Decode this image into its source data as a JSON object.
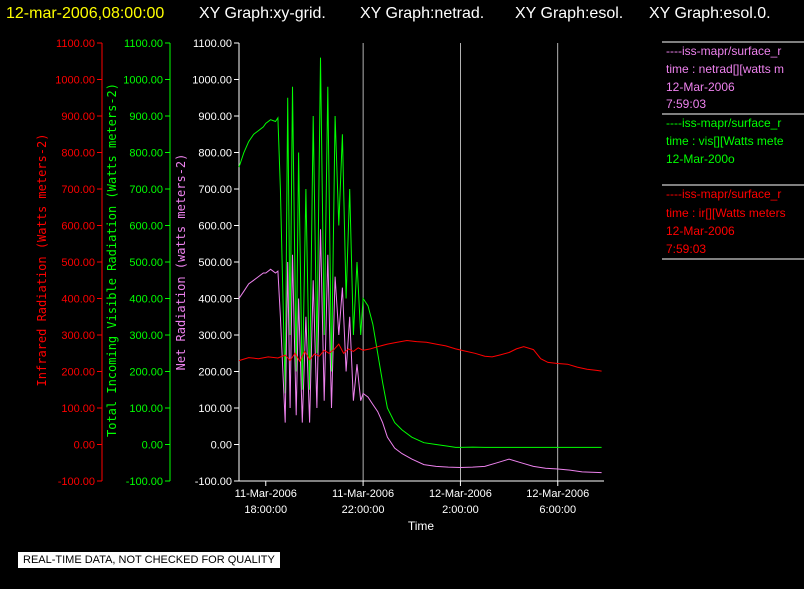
{
  "header": {
    "timestamp": "12-mar-2006,08:00:00",
    "titles": [
      "XY Graph:xy-grid.",
      "XY Graph:netrad.",
      "XY Graph:esol.",
      "XY Graph:esol.0."
    ]
  },
  "notice": "REAL-TIME DATA, NOT CHECKED FOR QUALITY",
  "colors": {
    "ir": "#ff0000",
    "vis": "#00ff00",
    "net": "#ee82ee",
    "title": "#ffff00",
    "grid": "#ffffff"
  },
  "chart_data": {
    "type": "line",
    "xlabel": "Time",
    "x_ticks": [
      {
        "x": 18,
        "line1": "11-Mar-2006",
        "line2": "18:00:00"
      },
      {
        "x": 22,
        "line1": "11-Mar-2006",
        "line2": "22:00:00"
      },
      {
        "x": 26,
        "line1": "12-Mar-2006",
        "line2": "2:00:00"
      },
      {
        "x": 30,
        "line1": "12-Mar-2006",
        "line2": "6:00:00"
      }
    ],
    "xlim": [
      16.9,
      31.9
    ],
    "gridlines_x": [
      22,
      26,
      30
    ],
    "y_axes": [
      {
        "id": "ir",
        "label": "Infrared Radiation (Watts meters-2)",
        "ylim": [
          -100,
          1100
        ],
        "ticks": [
          "-100.00",
          "0.00",
          "100.00",
          "200.00",
          "300.00",
          "400.00",
          "500.00",
          "600.00",
          "700.00",
          "800.00",
          "900.00",
          "1000.00",
          "1100.00"
        ]
      },
      {
        "id": "vis",
        "label": "Total Incoming Visible Radiation (Watts meters-2)",
        "ylim": [
          -100,
          1100
        ],
        "ticks": [
          "-100.00",
          "0.00",
          "100.00",
          "200.00",
          "300.00",
          "400.00",
          "500.00",
          "600.00",
          "700.00",
          "800.00",
          "900.00",
          "1000.00",
          "1100.00"
        ]
      },
      {
        "id": "net",
        "label": "Net Radiation (watts meters-2)",
        "ylim": [
          -100,
          1100
        ],
        "ticks": [
          "-100.00",
          "0.00",
          "100.00",
          "200.00",
          "300.00",
          "400.00",
          "500.00",
          "600.00",
          "700.00",
          "800.00",
          "900.00",
          "1000.00",
          "1100.00"
        ]
      }
    ],
    "series": [
      {
        "id": "vis",
        "x": [
          16.9,
          17.1,
          17.3,
          17.5,
          17.7,
          17.9,
          18.0,
          18.2,
          18.4,
          18.5,
          18.6,
          18.8,
          18.9,
          19.0,
          19.1,
          19.25,
          19.35,
          19.5,
          19.65,
          19.8,
          19.95,
          20.1,
          20.25,
          20.4,
          20.55,
          20.7,
          20.85,
          21.0,
          21.15,
          21.3,
          21.45,
          21.6,
          21.75,
          21.9,
          22.0,
          22.2,
          22.4,
          22.6,
          22.8,
          23.0,
          23.3,
          23.6,
          24.0,
          24.5,
          25.0,
          25.5,
          25.8,
          26.0,
          26.5,
          27.0,
          28.0,
          29.0,
          30.0,
          31.0,
          31.8
        ],
        "y": [
          760,
          800,
          830,
          850,
          860,
          870,
          880,
          890,
          885,
          895,
          700,
          140,
          950,
          300,
          980,
          200,
          800,
          150,
          700,
          150,
          900,
          250,
          1060,
          300,
          980,
          200,
          900,
          600,
          850,
          400,
          700,
          300,
          500,
          300,
          400,
          380,
          330,
          250,
          170,
          100,
          60,
          40,
          20,
          5,
          0,
          -5,
          -8,
          -8,
          -7,
          -8,
          -8,
          -8,
          -8,
          -8,
          -8
        ]
      },
      {
        "id": "net",
        "x": [
          16.9,
          17.1,
          17.3,
          17.5,
          17.7,
          17.9,
          18.0,
          18.2,
          18.4,
          18.5,
          18.6,
          18.8,
          18.9,
          19.0,
          19.1,
          19.25,
          19.35,
          19.5,
          19.65,
          19.8,
          19.95,
          20.1,
          20.25,
          20.4,
          20.55,
          20.7,
          20.85,
          21.0,
          21.15,
          21.3,
          21.45,
          21.6,
          21.75,
          21.9,
          22.0,
          22.2,
          22.4,
          22.6,
          22.8,
          23.0,
          23.3,
          23.6,
          24.0,
          24.5,
          25.0,
          25.5,
          26.0,
          26.5,
          27.0,
          27.5,
          28.0,
          28.5,
          29.0,
          29.5,
          30.0,
          30.5,
          31.0,
          31.8
        ],
        "y": [
          400,
          420,
          440,
          450,
          460,
          470,
          470,
          480,
          470,
          475,
          350,
          60,
          500,
          100,
          520,
          80,
          400,
          60,
          350,
          60,
          450,
          100,
          590,
          120,
          520,
          100,
          460,
          300,
          430,
          200,
          350,
          120,
          220,
          120,
          140,
          130,
          110,
          90,
          60,
          20,
          -10,
          -25,
          -40,
          -55,
          -60,
          -62,
          -63,
          -62,
          -60,
          -50,
          -40,
          -50,
          -60,
          -65,
          -67,
          -70,
          -75,
          -77
        ]
      },
      {
        "id": "ir",
        "x": [
          16.9,
          17.3,
          17.7,
          18.1,
          18.5,
          18.8,
          19.0,
          19.2,
          19.4,
          19.6,
          19.8,
          20.0,
          20.2,
          20.4,
          20.6,
          20.8,
          21.0,
          21.2,
          21.4,
          21.6,
          21.8,
          22.0,
          22.3,
          22.6,
          23.0,
          23.4,
          23.8,
          24.2,
          24.6,
          25.0,
          25.4,
          25.8,
          26.2,
          26.6,
          27.0,
          27.3,
          27.6,
          28.0,
          28.3,
          28.6,
          29.0,
          29.3,
          29.6,
          30.0,
          30.4,
          30.8,
          31.2,
          31.6,
          31.8
        ],
        "y": [
          230,
          238,
          235,
          240,
          237,
          245,
          230,
          250,
          228,
          255,
          232,
          248,
          242,
          258,
          250,
          260,
          275,
          250,
          262,
          255,
          265,
          258,
          262,
          268,
          275,
          280,
          285,
          282,
          280,
          275,
          270,
          262,
          256,
          250,
          242,
          240,
          245,
          252,
          262,
          268,
          260,
          235,
          225,
          222,
          220,
          212,
          206,
          203,
          201
        ]
      }
    ],
    "legend": {
      "placement": "right",
      "entries": [
        {
          "id": "net",
          "line1": "----iss-mapr/surface_r",
          "line2": "time : netrad[][watts m",
          "line3": "12-Mar-2006",
          "line4": "7:59:03"
        },
        {
          "id": "vis",
          "line1": "----iss-mapr/surface_r",
          "line2": "time : vis[][Watts mete",
          "line3": "12-Mar-200o",
          "line4": ""
        },
        {
          "id": "ir",
          "line1": "----iss-mapr/surface_r",
          "line2": "time : ir[][Watts meters",
          "line3": "12-Mar-2006",
          "line4": "7:59:03"
        }
      ]
    }
  }
}
